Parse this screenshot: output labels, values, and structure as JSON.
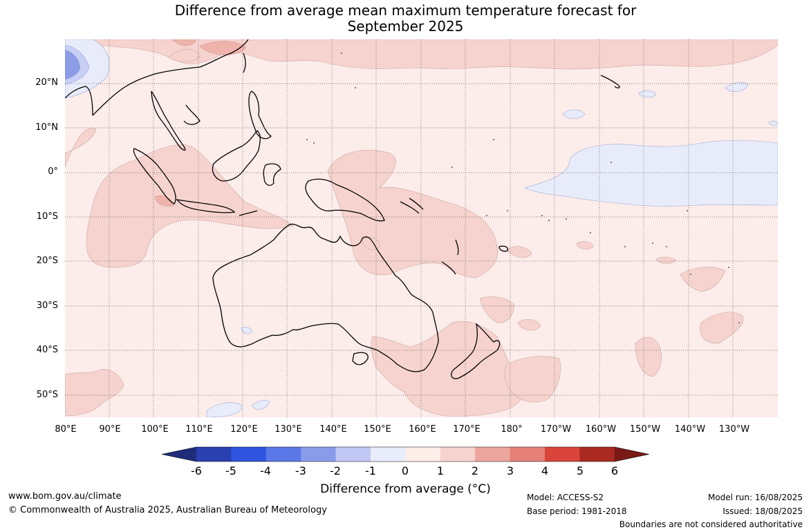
{
  "title": {
    "line1": "Difference from average mean maximum temperature forecast for",
    "line2": "September 2025"
  },
  "map": {
    "lat_labels": [
      "20°N",
      "10°N",
      "0°",
      "10°S",
      "20°S",
      "30°S",
      "40°S",
      "50°S"
    ],
    "lon_labels": [
      "80°E",
      "90°E",
      "100°E",
      "110°E",
      "120°E",
      "130°E",
      "140°E",
      "150°E",
      "160°E",
      "170°E",
      "180°",
      "170°W",
      "160°W",
      "150°W",
      "140°W",
      "130°W"
    ],
    "colors": {
      "background_anomaly_0_1": "#fcecea",
      "anomaly_1_2": "#f6d3ce",
      "anomaly_2_3": "#efb3ac",
      "anomaly_neg1_0": "#e8ecfa",
      "anomaly_neg2_neg1": "#c7cff5",
      "anomaly_neg3_neg2": "#8d9ce6",
      "coastline": "#000000",
      "grid": "#555555"
    }
  },
  "colorbar": {
    "title": "Difference from average (°C)",
    "tick_labels": [
      "-6",
      "-5",
      "-4",
      "-3",
      "-2",
      "-1",
      "0",
      "1",
      "2",
      "3",
      "4",
      "5",
      "6"
    ],
    "colors": [
      "#1f2c7c",
      "#2a3fb0",
      "#2f55de",
      "#5b78e8",
      "#8a9ce9",
      "#c1c8f4",
      "#e8ecfb",
      "#fdeeea",
      "#f6d3ce",
      "#eda69d",
      "#e58077",
      "#d9453a",
      "#aa2a22",
      "#7a1a16"
    ]
  },
  "footer": {
    "website": "www.bom.gov.au/climate",
    "copyright": "© Commonwealth of Australia 2025, Australian Bureau of Meteorology",
    "model": "Model: ACCESS-S2",
    "base_period": "Base period: 1981-2018",
    "model_run": "Model run: 16/08/2025",
    "issued": "Issued: 18/08/2025",
    "disclaimer": "Boundaries are not considered authoritative"
  }
}
